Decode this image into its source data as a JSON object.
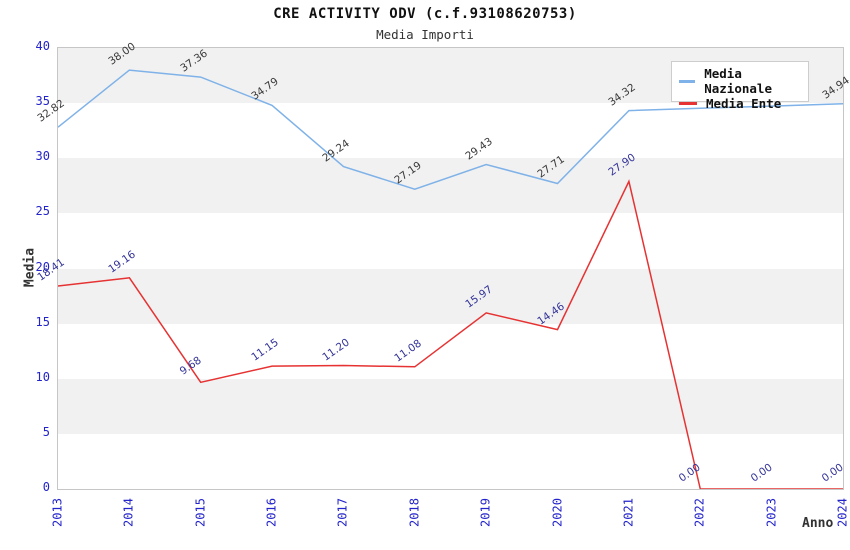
{
  "title": "CRE ACTIVITY ODV (c.f.93108620753)",
  "subtitle": "Media Importi",
  "axes": {
    "x_title": "Anno",
    "y_title": "Media"
  },
  "legend": {
    "position": "top-right",
    "items": [
      {
        "label": "Media Nazionale",
        "color": "#7fb2e8"
      },
      {
        "label": "Media Ente",
        "color": "#e63232"
      }
    ]
  },
  "colors": {
    "tick_label": "#2323cc",
    "band_gray": "#f1f1f1",
    "plot_border": "#c6c6c6",
    "national_label": "#3a3a3a",
    "ente_label": "#333399"
  },
  "chart_data": {
    "type": "line",
    "title": "CRE ACTIVITY ODV (c.f.93108620753)",
    "subtitle": "Media Importi",
    "xlabel": "Anno",
    "ylabel": "Media",
    "categories": [
      "2013",
      "2014",
      "2015",
      "2016",
      "2017",
      "2018",
      "2019",
      "2020",
      "2021",
      "2022",
      "2023",
      "2024"
    ],
    "series": [
      {
        "name": "Media Nazionale",
        "color": "#7fb2e8",
        "label_color": "#3a3a3a",
        "values": [
          32.82,
          38.0,
          37.36,
          34.79,
          29.24,
          27.19,
          29.43,
          27.71,
          34.32,
          34.53,
          34.73,
          34.94
        ],
        "point_labels": [
          "32.82",
          "38.00",
          "37.36",
          "34.79",
          "29.24",
          "27.19",
          "29.43",
          "27.71",
          "34.32",
          "",
          "",
          "34.94"
        ]
      },
      {
        "name": "Media Ente",
        "color": "#e63232",
        "label_color": "#333399",
        "values": [
          18.41,
          19.16,
          9.68,
          11.15,
          11.2,
          11.08,
          15.97,
          14.46,
          27.9,
          0.0,
          0.0,
          0.0
        ],
        "point_labels": [
          "18.41",
          "19.16",
          "9.68",
          "11.15",
          "11.20",
          "11.08",
          "15.97",
          "14.46",
          "27.90",
          "0.00",
          "0.00",
          "0.00"
        ]
      }
    ],
    "ylim": [
      0,
      40
    ],
    "yticks": [
      0,
      5,
      10,
      15,
      20,
      25,
      30,
      35,
      40
    ],
    "grid": "horizontal-bands-alternating",
    "legend_position": "top-right"
  }
}
